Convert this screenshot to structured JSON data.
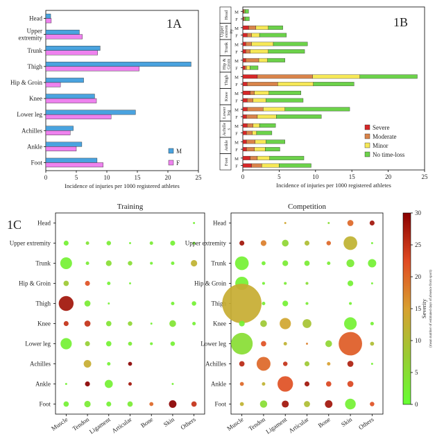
{
  "chart_data": [
    {
      "panel": "1A",
      "type": "bar",
      "orientation": "horizontal",
      "categories": [
        "Head",
        "Upper extremity",
        "Trunk",
        "Thigh",
        "Hip & Groin",
        "Knee",
        "Lower leg",
        "Achilles",
        "Ankle",
        "Foot"
      ],
      "category_lines": [
        [
          "Head"
        ],
        [
          "Upper",
          "extremity"
        ],
        [
          "Trunk"
        ],
        [
          "Thigh"
        ],
        [
          "Hip & Groin"
        ],
        [
          "Knee"
        ],
        [
          "Lower leg"
        ],
        [
          "Achilles"
        ],
        [
          "Ankle"
        ],
        [
          "Foot"
        ]
      ],
      "series": [
        {
          "name": "M",
          "color": "#4aa3df",
          "values": [
            0.8,
            5.5,
            8.9,
            23.8,
            6.2,
            8.0,
            14.7,
            4.5,
            5.9,
            8.4
          ]
        },
        {
          "name": "F",
          "color": "#ee82ee",
          "values": [
            0.9,
            6.0,
            8.5,
            15.3,
            2.4,
            8.3,
            10.7,
            4.0,
            5.0,
            9.4
          ]
        }
      ],
      "xlabel": "Incidence of injuries per 1000 registered athletes",
      "xlim": [
        0,
        25
      ],
      "xticks": [
        "0",
        "5",
        "10",
        "15",
        "20",
        "25"
      ],
      "legend_position": "bottom-right",
      "grid": false
    },
    {
      "panel": "1B",
      "type": "bar",
      "orientation": "horizontal",
      "stacked": true,
      "groups": [
        [
          "Head"
        ],
        [
          "Upper",
          "extrem",
          "ity"
        ],
        [
          "Trunk"
        ],
        [
          "Hip &",
          "Groin"
        ],
        [
          "Thigh"
        ],
        [
          "Knee"
        ],
        [
          "Lower",
          "leg"
        ],
        [
          "Achille",
          "s"
        ],
        [
          "Ankle"
        ],
        [
          "Foot"
        ]
      ],
      "sex_labels": [
        "M",
        "F"
      ],
      "series": [
        {
          "name": "Severe",
          "color": "#d62728",
          "values": [
            [
              0.1,
              0.1
            ],
            [
              0.8,
              0.6
            ],
            [
              0.4,
              0.4
            ],
            [
              0.4,
              0.3
            ],
            [
              2.0,
              0.6
            ],
            [
              1.0,
              0.6
            ],
            [
              0.6,
              0.5
            ],
            [
              0.6,
              0.5
            ],
            [
              0.5,
              0.5
            ],
            [
              1.0,
              1.2
            ]
          ]
        },
        {
          "name": "Moderate",
          "color": "#d9844a",
          "values": [
            [
              0.1,
              0.1
            ],
            [
              1.0,
              0.6
            ],
            [
              0.8,
              0.6
            ],
            [
              1.8,
              0.2
            ],
            [
              7.6,
              4.2
            ],
            [
              0.6,
              0.8
            ],
            [
              2.2,
              1.5
            ],
            [
              0.8,
              0.8
            ],
            [
              1.2,
              1.1
            ],
            [
              1.0,
              1.4
            ]
          ]
        },
        {
          "name": "Minor",
          "color": "#f6e857",
          "values": [
            [
              0.1,
              0.1
            ],
            [
              1.7,
              1.1
            ],
            [
              3.0,
              2.5
            ],
            [
              1.2,
              0.5
            ],
            [
              6.5,
              4.9
            ],
            [
              2.0,
              1.8
            ],
            [
              3.0,
              2.6
            ],
            [
              0.9,
              0.6
            ],
            [
              1.5,
              1.5
            ],
            [
              1.7,
              2.4
            ]
          ]
        },
        {
          "name": "No time-loss",
          "color": "#6cd24a",
          "values": [
            [
              0.5,
              0.6
            ],
            [
              2.0,
              3.7
            ],
            [
              4.7,
              5.0
            ],
            [
              2.4,
              1.1
            ],
            [
              7.9,
              5.6
            ],
            [
              4.4,
              5.1
            ],
            [
              8.9,
              6.2
            ],
            [
              2.2,
              2.1
            ],
            [
              2.6,
              2.0
            ],
            [
              4.7,
              4.4
            ]
          ]
        }
      ],
      "xlabel": "Incidence of injuries per 1000 registered athletes",
      "xlim": [
        0,
        25
      ],
      "xticks": [
        "0",
        "5",
        "10",
        "15",
        "20",
        "25"
      ],
      "legend_position": "right",
      "grid": false
    },
    {
      "panel": "1C",
      "type": "scatter",
      "encoding": "bubble size = incidence, colour = severity",
      "rows": [
        "Head",
        "Upper extremity",
        "Trunk",
        "Hip & Groin",
        "Thigh",
        "Knee",
        "Lower leg",
        "Achilles",
        "Ankle",
        "Foot"
      ],
      "columns": [
        "Muscle",
        "Tendon",
        "Ligament",
        "Articular",
        "Bone",
        "Skin",
        "Others"
      ],
      "subplots": [
        {
          "title": "Training",
          "values": [
            [
              0,
              0,
              0,
              0,
              0,
              0,
              0.1
            ],
            [
              0.6,
              0.3,
              0.5,
              0.1,
              0.3,
              0.6,
              0.2
            ],
            [
              3.4,
              0.3,
              0.8,
              0.5,
              0.2,
              0.3,
              1.0
            ],
            [
              0.7,
              0.6,
              0.3,
              0.1,
              0,
              0,
              0
            ],
            [
              5.4,
              0.9,
              0.1,
              0,
              0,
              0.3,
              0.5
            ],
            [
              0.6,
              0.9,
              0.7,
              0.5,
              0.1,
              1.1,
              0.3
            ],
            [
              3.1,
              0.6,
              0.7,
              0.4,
              0.2,
              0.5,
              0
            ],
            [
              0,
              1.4,
              0.3,
              0.4,
              0,
              0,
              0
            ],
            [
              0.1,
              0.6,
              1.6,
              0.3,
              0,
              0.1,
              0
            ],
            [
              0.7,
              1.0,
              0.6,
              0.7,
              0.4,
              1.4,
              0.7
            ]
          ],
          "severity": [
            [
              0,
              0,
              0,
              0,
              0,
              0,
              2
            ],
            [
              2,
              4,
              3,
              2,
              3,
              2,
              2
            ],
            [
              2,
              3,
              5,
              5,
              2,
              2,
              12
            ],
            [
              8,
              22,
              2,
              2,
              0,
              0,
              0
            ],
            [
              28,
              3,
              2,
              0,
              0,
              2,
              2
            ],
            [
              25,
              25,
              4,
              6,
              2,
              4,
              2
            ],
            [
              2,
              7,
              2,
              3,
              2,
              2,
              0
            ],
            [
              0,
              13,
              2,
              30,
              0,
              0,
              0
            ],
            [
              2,
              30,
              2,
              28,
              0,
              2,
              0
            ],
            [
              2,
              3,
              2,
              3,
              20,
              30,
              25
            ]
          ]
        },
        {
          "title": "Competition",
          "values": [
            [
              0,
              0,
              0.1,
              0,
              0.1,
              0.9,
              0.6
            ],
            [
              0.6,
              0.8,
              1.1,
              0.6,
              0.5,
              4.6,
              0.1
            ],
            [
              4.6,
              0.4,
              0.8,
              0.7,
              0.3,
              1.5,
              1.7
            ],
            [
              4.3,
              0.2,
              0.2,
              0.2,
              0,
              0.8,
              0.1
            ],
            [
              38,
              0.3,
              0.8,
              0.2,
              0,
              0.2,
              0
            ],
            [
              0.8,
              1.1,
              3.1,
              1.9,
              0,
              3.9,
              0.3
            ],
            [
              11.5,
              0.7,
              0.3,
              0.1,
              1.1,
              13.5,
              0.4
            ],
            [
              0.7,
              4.7,
              0.5,
              0.6,
              0.3,
              0.9,
              0.1
            ],
            [
              0.4,
              0.3,
              5.9,
              0.6,
              0.7,
              0.9,
              0
            ],
            [
              0.4,
              1.3,
              1.2,
              0.9,
              1.4,
              2.8,
              0.5
            ]
          ],
          "severity": [
            [
              0,
              0,
              14,
              0,
              5,
              20,
              28
            ],
            [
              28,
              18,
              6,
              10,
              20,
              12,
              2
            ],
            [
              2,
              2,
              3,
              3,
              3,
              3,
              2
            ],
            [
              2,
              2,
              3,
              5,
              0,
              2,
              2
            ],
            [
              13,
              3,
              2,
              3,
              0,
              2,
              0
            ],
            [
              2,
              8,
              14,
              9,
              0,
              2,
              2
            ],
            [
              5,
              22,
              12,
              18,
              6,
              21,
              10
            ],
            [
              26,
              20,
              25,
              8,
              15,
              27,
              2
            ],
            [
              20,
              12,
              22,
              28,
              23,
              23,
              0
            ],
            [
              12,
              5,
              28,
              10,
              28,
              2,
              22
            ]
          ]
        }
      ],
      "colorbar": {
        "label": "Severity",
        "sublabel": "(mean number of estimated days of absence from sport)",
        "range": [
          0,
          30
        ],
        "ticks": [
          "0",
          "5",
          "10",
          "15",
          "20",
          "25",
          "30"
        ],
        "stops": [
          "#66ff33",
          "#99cc33",
          "#d8a030",
          "#e04a22",
          "#8a0000"
        ]
      }
    }
  ]
}
